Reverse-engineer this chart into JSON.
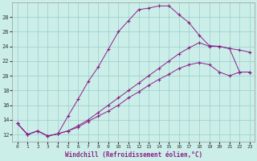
{
  "xlabel": "Windchill (Refroidissement éolien,°C)",
  "bg_color": "#cceee8",
  "line_color": "#882288",
  "grid_color": "#99cccc",
  "xlim": [
    -0.5,
    23.5
  ],
  "ylim": [
    11.0,
    30.0
  ],
  "xticks": [
    0,
    1,
    2,
    3,
    4,
    5,
    6,
    7,
    8,
    9,
    10,
    11,
    12,
    13,
    14,
    15,
    16,
    17,
    18,
    19,
    20,
    21,
    22,
    23
  ],
  "yticks": [
    12,
    14,
    16,
    18,
    20,
    22,
    24,
    26,
    28
  ],
  "line1_x": [
    0,
    1,
    2,
    3,
    4,
    5,
    6,
    7,
    8,
    9,
    10,
    11,
    12,
    13,
    14,
    15,
    16,
    17,
    18,
    19,
    20,
    21,
    22,
    23
  ],
  "line1_y": [
    13.5,
    12.0,
    12.5,
    11.8,
    12.1,
    14.5,
    16.8,
    19.2,
    21.2,
    23.6,
    26.0,
    27.5,
    29.0,
    29.2,
    29.5,
    29.5,
    28.3,
    27.2,
    25.5,
    24.1,
    24.0,
    23.7,
    20.5,
    20.5
  ],
  "line2_x": [
    0,
    1,
    2,
    3,
    4,
    5,
    6,
    7,
    8,
    9,
    10,
    11,
    12,
    13,
    14,
    15,
    16,
    17,
    18,
    19,
    20,
    21,
    22,
    23
  ],
  "line2_y": [
    13.5,
    12.0,
    12.5,
    11.8,
    12.1,
    12.5,
    13.2,
    14.0,
    15.0,
    16.0,
    17.0,
    18.0,
    19.0,
    20.0,
    21.0,
    22.0,
    23.0,
    23.8,
    24.5,
    24.0,
    24.0,
    23.7,
    23.5,
    23.2
  ],
  "line3_x": [
    0,
    1,
    2,
    3,
    4,
    5,
    6,
    7,
    8,
    9,
    10,
    11,
    12,
    13,
    14,
    15,
    16,
    17,
    18,
    19,
    20,
    21,
    22,
    23
  ],
  "line3_y": [
    13.5,
    12.0,
    12.5,
    11.8,
    12.1,
    12.5,
    13.0,
    13.8,
    14.5,
    15.2,
    16.0,
    17.0,
    17.8,
    18.7,
    19.5,
    20.2,
    21.0,
    21.5,
    21.8,
    21.5,
    20.5,
    20.0,
    20.5,
    20.5
  ]
}
